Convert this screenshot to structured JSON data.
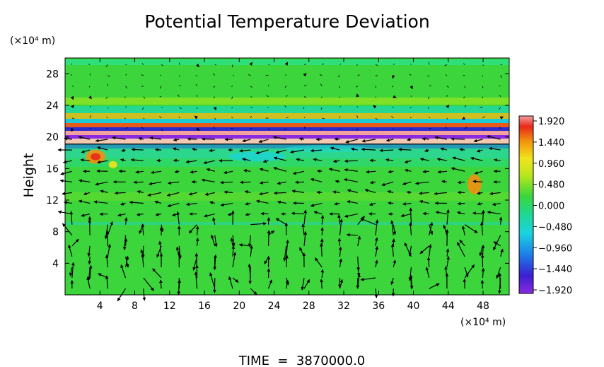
{
  "chart_data": {
    "type": "heatmap",
    "title": "Potential Temperature Deviation",
    "ylabel": "Height",
    "y_unit": "(×10⁴ m)",
    "x_unit": "(×10⁴ m)",
    "x_ticks": [
      "4",
      "8",
      "12",
      "16",
      "20",
      "24",
      "28",
      "32",
      "36",
      "40",
      "44",
      "48"
    ],
    "y_ticks": [
      "4",
      "8",
      "12",
      "16",
      "20",
      "24",
      "28"
    ],
    "xlim": [
      0,
      51
    ],
    "ylim": [
      0,
      30
    ],
    "colorbar": {
      "labels": [
        "1.920",
        "1.440",
        "0.960",
        "0.480",
        "0.000",
        "−0.480",
        "−0.960",
        "−1.440",
        "−1.920"
      ],
      "range": [
        -1.92,
        1.92
      ]
    },
    "time_label": "TIME  =  3870000.0",
    "overlay": "velocity vectors",
    "colors": {
      "background_field": "#3cd63c",
      "positive_max": "#f08a8a",
      "negative_min": "#8a2be2"
    }
  }
}
